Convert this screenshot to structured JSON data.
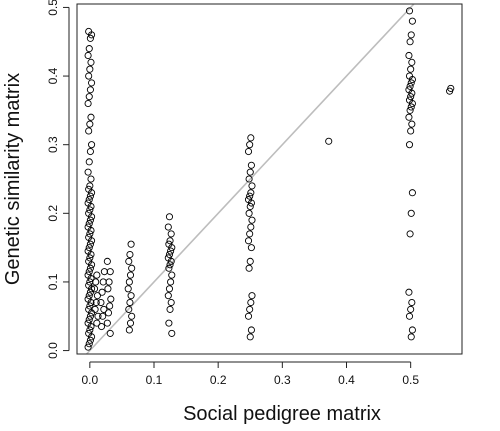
{
  "chart_data": {
    "type": "scatter",
    "xlabel": "Social pedigree matrix",
    "ylabel": "Genetic similarity matrix",
    "xlim": [
      -0.02,
      0.58
    ],
    "ylim": [
      -0.005,
      0.505
    ],
    "x_ticks": [
      0.0,
      0.1,
      0.2,
      0.3,
      0.4,
      0.5
    ],
    "y_ticks": [
      0.0,
      0.1,
      0.2,
      0.3,
      0.4,
      0.5
    ],
    "x_tick_labels": [
      "0.0",
      "0.1",
      "0.2",
      "0.3",
      "0.4",
      "0.5"
    ],
    "y_tick_labels": [
      "0.0",
      "0.1",
      "0.2",
      "0.3",
      "0.4",
      "0.5"
    ],
    "grid": false,
    "reference_line": {
      "slope": 1,
      "intercept": 0,
      "color": "#bdbdbd"
    },
    "marker": {
      "shape": "open-circle",
      "color": "#000000"
    },
    "clusters": [
      {
        "x": 0.0,
        "y_values": [
          0.005,
          0.01,
          0.015,
          0.02,
          0.025,
          0.03,
          0.035,
          0.04,
          0.045,
          0.05,
          0.055,
          0.06,
          0.065,
          0.07,
          0.075,
          0.08,
          0.085,
          0.09,
          0.095,
          0.1,
          0.105,
          0.11,
          0.115,
          0.12,
          0.125,
          0.13,
          0.135,
          0.14,
          0.145,
          0.15,
          0.155,
          0.16,
          0.165,
          0.17,
          0.175,
          0.18,
          0.185,
          0.19,
          0.195,
          0.2,
          0.205,
          0.21,
          0.215,
          0.22,
          0.225,
          0.23,
          0.235,
          0.24,
          0.25,
          0.26,
          0.275,
          0.29,
          0.3,
          0.32,
          0.33,
          0.34,
          0.36,
          0.37,
          0.38,
          0.39,
          0.4,
          0.41,
          0.42,
          0.43,
          0.44,
          0.455,
          0.46,
          0.465
        ]
      },
      {
        "x": 0.01,
        "y_values": [
          0.04,
          0.05,
          0.06,
          0.07,
          0.08,
          0.09,
          0.1,
          0.11
        ]
      },
      {
        "x": 0.02,
        "y_values": [
          0.035,
          0.05,
          0.06,
          0.07,
          0.085,
          0.1,
          0.115
        ]
      },
      {
        "x": 0.03,
        "y_values": [
          0.025,
          0.04,
          0.055,
          0.065,
          0.075,
          0.09,
          0.1,
          0.115,
          0.13
        ]
      },
      {
        "x": 0.0625,
        "y_values": [
          0.03,
          0.04,
          0.05,
          0.06,
          0.07,
          0.08,
          0.09,
          0.1,
          0.11,
          0.12,
          0.13,
          0.14,
          0.155
        ]
      },
      {
        "x": 0.125,
        "y_values": [
          0.025,
          0.04,
          0.06,
          0.07,
          0.08,
          0.09,
          0.1,
          0.11,
          0.12,
          0.125,
          0.13,
          0.135,
          0.14,
          0.145,
          0.15,
          0.155,
          0.16,
          0.17,
          0.18,
          0.195
        ]
      },
      {
        "x": 0.25,
        "y_values": [
          0.02,
          0.03,
          0.05,
          0.06,
          0.07,
          0.08,
          0.12,
          0.13,
          0.15,
          0.16,
          0.17,
          0.18,
          0.19,
          0.2,
          0.21,
          0.215,
          0.22,
          0.225,
          0.23,
          0.24,
          0.25,
          0.26,
          0.27,
          0.29,
          0.3,
          0.31
        ]
      },
      {
        "x": 0.375,
        "y_values": [
          0.305
        ]
      },
      {
        "x": 0.5,
        "y_values": [
          0.02,
          0.03,
          0.05,
          0.06,
          0.07,
          0.085,
          0.17,
          0.2,
          0.23,
          0.3,
          0.32,
          0.33,
          0.34,
          0.35,
          0.355,
          0.36,
          0.365,
          0.37,
          0.375,
          0.38,
          0.385,
          0.39,
          0.395,
          0.4,
          0.41,
          0.42,
          0.43,
          0.45,
          0.46,
          0.48,
          0.495
        ]
      },
      {
        "x": 0.5625,
        "y_values": [
          0.378,
          0.382
        ]
      }
    ]
  }
}
